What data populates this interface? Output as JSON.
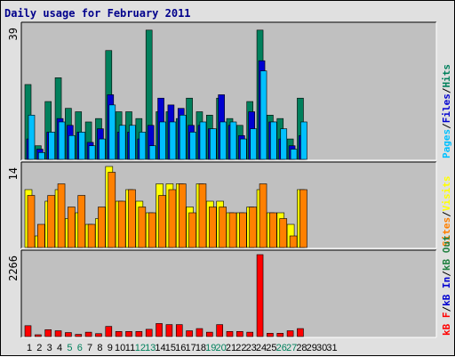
{
  "title": "Daily usage for February 2011",
  "colors": {
    "hits": "#00805c",
    "files": "#0000d0",
    "pages": "#00c0ff",
    "visits": "#ffff00",
    "sites": "#ff8000",
    "kbout": "#208040",
    "kbin": "#0000d0",
    "kbf": "#ff0000",
    "weekend": "#00805c",
    "weekday": "#000000",
    "panel": "#c0c0c0"
  },
  "panels": [
    {
      "key": "hits_files_pages",
      "scale_label": "39",
      "legend": [
        {
          "text": "Pages",
          "color": "#00c0ff"
        },
        {
          "text": "/",
          "color": "#000000"
        },
        {
          "text": "Files",
          "color": "#0000d0"
        },
        {
          "text": "/",
          "color": "#000000"
        },
        {
          "text": "Hits",
          "color": "#00805c"
        }
      ]
    },
    {
      "key": "visits_sites",
      "scale_label": "14",
      "legend": [
        {
          "text": "Sites",
          "color": "#ff8000"
        },
        {
          "text": "/",
          "color": "#000000"
        },
        {
          "text": "Visits",
          "color": "#ffff00"
        }
      ]
    },
    {
      "key": "kbytes",
      "scale_label": "2266",
      "legend": [
        {
          "text": "kB F",
          "color": "#ff0000"
        },
        {
          "text": "/",
          "color": "#000000"
        },
        {
          "text": "kB In",
          "color": "#0000d0"
        },
        {
          "text": "/",
          "color": "#000000"
        },
        {
          "text": "kB Out",
          "color": "#208040"
        }
      ]
    }
  ],
  "chart_data": {
    "type": "bar",
    "title": "Daily usage for February 2011",
    "categories": [
      "1",
      "2",
      "3",
      "4",
      "5",
      "6",
      "7",
      "8",
      "9",
      "10",
      "11",
      "12",
      "13",
      "14",
      "15",
      "16",
      "17",
      "18",
      "19",
      "20",
      "21",
      "22",
      "23",
      "24",
      "25",
      "26",
      "27",
      "28",
      "29",
      "30",
      "31"
    ],
    "weekend_days": [
      5,
      6,
      12,
      13,
      19,
      20,
      26,
      27
    ],
    "series": [
      {
        "name": "Hits",
        "panel": 0,
        "ymax": 39,
        "values": [
          22,
          4,
          17,
          24,
          15,
          14,
          11,
          12,
          32,
          14,
          14,
          12,
          38,
          14,
          14,
          12,
          18,
          14,
          13,
          18,
          12,
          10,
          17,
          38,
          13,
          12,
          6,
          18,
          0,
          0,
          0
        ]
      },
      {
        "name": "Files",
        "panel": 0,
        "ymax": 39,
        "values": [
          6,
          3,
          8,
          12,
          10,
          8,
          5,
          9,
          19,
          8,
          8,
          6,
          10,
          18,
          16,
          15,
          10,
          10,
          9,
          19,
          10,
          7,
          14,
          29,
          11,
          6,
          4,
          7,
          0,
          0,
          0
        ]
      },
      {
        "name": "Pages",
        "panel": 0,
        "ymax": 39,
        "values": [
          13,
          2,
          8,
          11,
          7,
          8,
          4,
          6,
          16,
          10,
          10,
          8,
          4,
          11,
          11,
          13,
          8,
          11,
          9,
          11,
          11,
          6,
          9,
          26,
          11,
          9,
          3,
          11,
          0,
          0,
          0
        ]
      },
      {
        "name": "Visits",
        "panel": 1,
        "ymax": 14,
        "values": [
          10,
          2,
          8,
          10,
          5,
          6,
          4,
          5,
          14,
          8,
          10,
          8,
          6,
          11,
          11,
          11,
          7,
          11,
          8,
          8,
          6,
          6,
          7,
          10,
          6,
          6,
          4,
          10,
          0,
          0,
          0
        ]
      },
      {
        "name": "Sites",
        "panel": 1,
        "ymax": 14,
        "values": [
          9,
          4,
          9,
          11,
          7,
          9,
          4,
          7,
          13,
          8,
          10,
          7,
          6,
          9,
          10,
          11,
          6,
          11,
          7,
          7,
          6,
          6,
          7,
          11,
          6,
          5,
          2,
          10,
          0,
          0,
          0
        ]
      },
      {
        "name": "kB F",
        "panel": 2,
        "ymax": 2266,
        "values": [
          300,
          40,
          190,
          160,
          110,
          60,
          120,
          80,
          280,
          140,
          140,
          140,
          200,
          360,
          330,
          330,
          160,
          220,
          120,
          330,
          140,
          140,
          120,
          2266,
          90,
          90,
          160,
          220,
          0,
          0,
          0
        ]
      },
      {
        "name": "kB In",
        "panel": 2,
        "ymax": 2266,
        "values": [
          0,
          0,
          0,
          0,
          0,
          0,
          0,
          0,
          0,
          0,
          0,
          0,
          0,
          0,
          0,
          0,
          0,
          0,
          0,
          0,
          0,
          0,
          0,
          0,
          0,
          0,
          0,
          0,
          0,
          0,
          0
        ]
      },
      {
        "name": "kB Out",
        "panel": 2,
        "ymax": 2266,
        "values": [
          0,
          0,
          0,
          0,
          0,
          0,
          0,
          0,
          0,
          0,
          0,
          0,
          0,
          0,
          0,
          0,
          0,
          0,
          0,
          0,
          0,
          0,
          0,
          0,
          0,
          0,
          0,
          0,
          0,
          0,
          0
        ]
      }
    ]
  }
}
